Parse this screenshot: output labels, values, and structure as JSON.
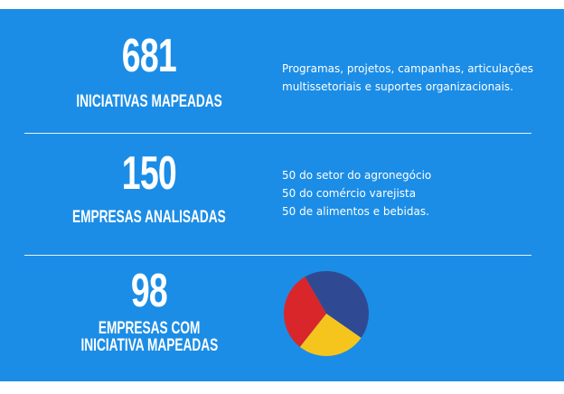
{
  "stats": [
    {
      "number": 681,
      "label": "INICIATIVAS MAPEADAS",
      "description": [
        "Programas, projetos, campanhas, articulações",
        "multissetoriais e suportes organizacionais."
      ]
    },
    {
      "number": 150,
      "label": "EMPRESAS ANALISADAS",
      "description": [
        "50 do setor do agronegócio",
        "50 do comércio varejista",
        "50 de alimentos e bebidas."
      ]
    },
    {
      "number": 98,
      "label": [
        "EMPRESAS COM",
        "INICIATIVA MAPEADAS"
      ],
      "pie": {
        "type": "pie",
        "values": [
          43,
          26,
          31
        ],
        "colors": [
          "#2f4a93",
          "#f5c51e",
          "#d9262b"
        ]
      }
    }
  ]
}
